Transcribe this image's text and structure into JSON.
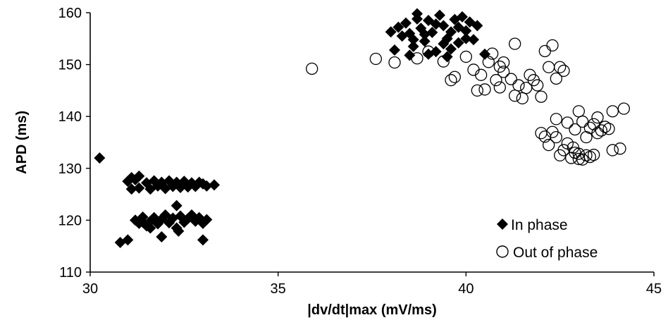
{
  "chart_data": {
    "type": "scatter",
    "title": "",
    "xlabel": "|dv/dt|max (mV/ms)",
    "ylabel": "APD (ms)",
    "xlim": [
      30,
      45
    ],
    "ylim": [
      110,
      160
    ],
    "xticks": [
      30,
      35,
      40,
      45
    ],
    "yticks": [
      110,
      120,
      130,
      140,
      150,
      160
    ],
    "grid": false,
    "legend_position": "bottom-right",
    "series": [
      {
        "name": "In phase",
        "marker": "filled-diamond",
        "color": "#000000",
        "points": [
          [
            30.25,
            132
          ],
          [
            30.8,
            115.7
          ],
          [
            31.0,
            116.2
          ],
          [
            31.0,
            127.5
          ],
          [
            31.1,
            128.2
          ],
          [
            31.2,
            127.8
          ],
          [
            31.3,
            128.5
          ],
          [
            31.1,
            126.0
          ],
          [
            31.3,
            126.2
          ],
          [
            31.5,
            127.2
          ],
          [
            31.6,
            126.0
          ],
          [
            31.7,
            127.6
          ],
          [
            31.8,
            126.6
          ],
          [
            31.9,
            127.3
          ],
          [
            32.0,
            126.1
          ],
          [
            32.1,
            127.6
          ],
          [
            32.2,
            126.5
          ],
          [
            32.3,
            127.3
          ],
          [
            32.4,
            126.3
          ],
          [
            32.5,
            127.5
          ],
          [
            32.6,
            126.4
          ],
          [
            32.7,
            127.2
          ],
          [
            32.8,
            126.5
          ],
          [
            32.9,
            127.3
          ],
          [
            33.0,
            127.0
          ],
          [
            33.1,
            126.6
          ],
          [
            33.3,
            126.8
          ],
          [
            31.2,
            120.0
          ],
          [
            31.3,
            119.4
          ],
          [
            31.4,
            120.6
          ],
          [
            31.5,
            118.9
          ],
          [
            31.6,
            119.8
          ],
          [
            31.7,
            120.5
          ],
          [
            31.8,
            119.3
          ],
          [
            31.9,
            120.2
          ],
          [
            32.0,
            121.0
          ],
          [
            32.1,
            119.5
          ],
          [
            32.2,
            120.4
          ],
          [
            32.3,
            118.5
          ],
          [
            32.4,
            120.8
          ],
          [
            32.5,
            119.6
          ],
          [
            32.6,
            120.3
          ],
          [
            32.7,
            121.0
          ],
          [
            32.8,
            119.8
          ],
          [
            32.9,
            120.5
          ],
          [
            33.0,
            119.4
          ],
          [
            33.1,
            120.1
          ],
          [
            31.6,
            118.5
          ],
          [
            32.3,
            122.8
          ],
          [
            31.9,
            116.8
          ],
          [
            33.0,
            116.2
          ],
          [
            32.35,
            117.9
          ],
          [
            31.4,
            119.6
          ],
          [
            38.1,
            152.8
          ],
          [
            38.3,
            155.5
          ],
          [
            38.4,
            158.0
          ],
          [
            38.5,
            156.0
          ],
          [
            38.6,
            153.5
          ],
          [
            38.7,
            159.8
          ],
          [
            38.8,
            157.0
          ],
          [
            38.9,
            154.5
          ],
          [
            39.0,
            158.5
          ],
          [
            39.1,
            156.2
          ],
          [
            39.2,
            152.5
          ],
          [
            39.3,
            159.5
          ],
          [
            39.4,
            157.5
          ],
          [
            39.5,
            155.0
          ],
          [
            39.6,
            153.0
          ],
          [
            39.7,
            158.7
          ],
          [
            39.8,
            157.2
          ],
          [
            39.9,
            159.2
          ],
          [
            40.0,
            156.5
          ],
          [
            40.1,
            158.2
          ],
          [
            40.2,
            154.8
          ],
          [
            40.3,
            157.5
          ],
          [
            40.5,
            152.0
          ],
          [
            38.2,
            157.2
          ],
          [
            38.6,
            154.8
          ],
          [
            39.0,
            152.0
          ],
          [
            39.4,
            154.0
          ],
          [
            39.8,
            154.2
          ],
          [
            38.5,
            151.8
          ],
          [
            39.5,
            151.5
          ],
          [
            38.9,
            155.8
          ],
          [
            39.2,
            157.8
          ],
          [
            39.6,
            156.3
          ],
          [
            40.0,
            155.0
          ],
          [
            38.0,
            156.3
          ],
          [
            38.7,
            158.8
          ]
        ]
      },
      {
        "name": "Out of phase",
        "marker": "open-circle",
        "color": "#000000",
        "points": [
          [
            35.9,
            149.2
          ],
          [
            37.6,
            151.1
          ],
          [
            38.1,
            150.4
          ],
          [
            38.7,
            151.2
          ],
          [
            39.0,
            152.5
          ],
          [
            39.4,
            150.6
          ],
          [
            39.6,
            147.0
          ],
          [
            39.7,
            147.6
          ],
          [
            40.0,
            151.5
          ],
          [
            40.2,
            149.0
          ],
          [
            40.3,
            145.0
          ],
          [
            40.4,
            148.0
          ],
          [
            40.5,
            145.2
          ],
          [
            40.6,
            150.5
          ],
          [
            40.7,
            152.1
          ],
          [
            40.8,
            147.0
          ],
          [
            40.9,
            145.6
          ],
          [
            40.9,
            149.6
          ],
          [
            41.0,
            148.6
          ],
          [
            41.0,
            150.4
          ],
          [
            41.2,
            147.2
          ],
          [
            41.3,
            144.0
          ],
          [
            41.3,
            154.0
          ],
          [
            41.4,
            146.0
          ],
          [
            41.5,
            143.5
          ],
          [
            41.6,
            145.5
          ],
          [
            41.7,
            148.0
          ],
          [
            41.8,
            147.0
          ],
          [
            41.9,
            146.0
          ],
          [
            42.0,
            143.8
          ],
          [
            42.1,
            152.6
          ],
          [
            42.2,
            149.5
          ],
          [
            42.3,
            153.7
          ],
          [
            42.4,
            147.3
          ],
          [
            42.5,
            149.5
          ],
          [
            42.6,
            148.8
          ],
          [
            42.0,
            136.8
          ],
          [
            42.1,
            136.1
          ],
          [
            42.2,
            134.5
          ],
          [
            42.3,
            137.0
          ],
          [
            42.4,
            136.0
          ],
          [
            42.5,
            132.5
          ],
          [
            42.6,
            133.5
          ],
          [
            42.7,
            134.8
          ],
          [
            42.8,
            132.0
          ],
          [
            42.9,
            133.0
          ],
          [
            43.0,
            131.8
          ],
          [
            43.1,
            131.7
          ],
          [
            43.2,
            132.5
          ],
          [
            43.3,
            132.2
          ],
          [
            43.4,
            132.6
          ],
          [
            42.7,
            138.8
          ],
          [
            42.9,
            137.5
          ],
          [
            43.1,
            139.0
          ],
          [
            43.2,
            136.0
          ],
          [
            43.3,
            137.8
          ],
          [
            43.4,
            138.5
          ],
          [
            43.5,
            136.8
          ],
          [
            43.6,
            137.3
          ],
          [
            43.7,
            138.0
          ],
          [
            43.8,
            137.6
          ],
          [
            43.0,
            141.0
          ],
          [
            43.9,
            141.0
          ],
          [
            43.5,
            139.8
          ],
          [
            44.2,
            141.5
          ],
          [
            43.9,
            133.5
          ],
          [
            44.1,
            133.8
          ],
          [
            42.85,
            134.0
          ],
          [
            42.4,
            139.5
          ],
          [
            43.0,
            132.8
          ]
        ]
      }
    ]
  }
}
